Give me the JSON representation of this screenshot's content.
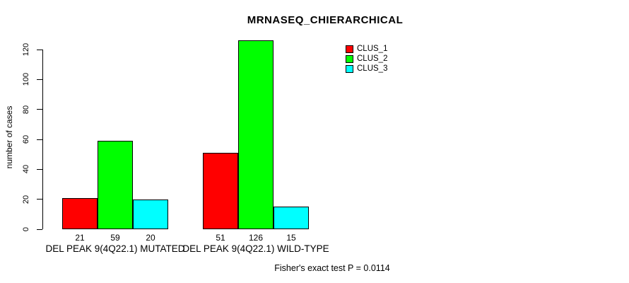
{
  "chart_data": {
    "type": "bar",
    "title": "MRNASEQ_CHIERARCHICAL",
    "xlabel": "",
    "ylabel": "number of cases",
    "annotation": "Fisher's exact test P = 0.0114",
    "categories": [
      "DEL PEAK 9(4Q22.1) MUTATED",
      "DEL PEAK 9(4Q22.1) WILD-TYPE"
    ],
    "series": [
      {
        "name": "CLUS_1",
        "color": "#ff0000",
        "values": [
          21,
          51
        ]
      },
      {
        "name": "CLUS_2",
        "color": "#00ff00",
        "values": [
          59,
          126
        ]
      },
      {
        "name": "CLUS_3",
        "color": "#00ffff",
        "values": [
          20,
          15
        ]
      }
    ],
    "bar_value_labels": [
      [
        21,
        59,
        20
      ],
      [
        51,
        126,
        15
      ]
    ],
    "ylim": [
      0,
      120
    ],
    "yticks": [
      0,
      20,
      40,
      60,
      80,
      100,
      120
    ],
    "legend_position": "top-right",
    "grid": false,
    "background_color": "#ffffff",
    "axis_color": "#000000"
  }
}
